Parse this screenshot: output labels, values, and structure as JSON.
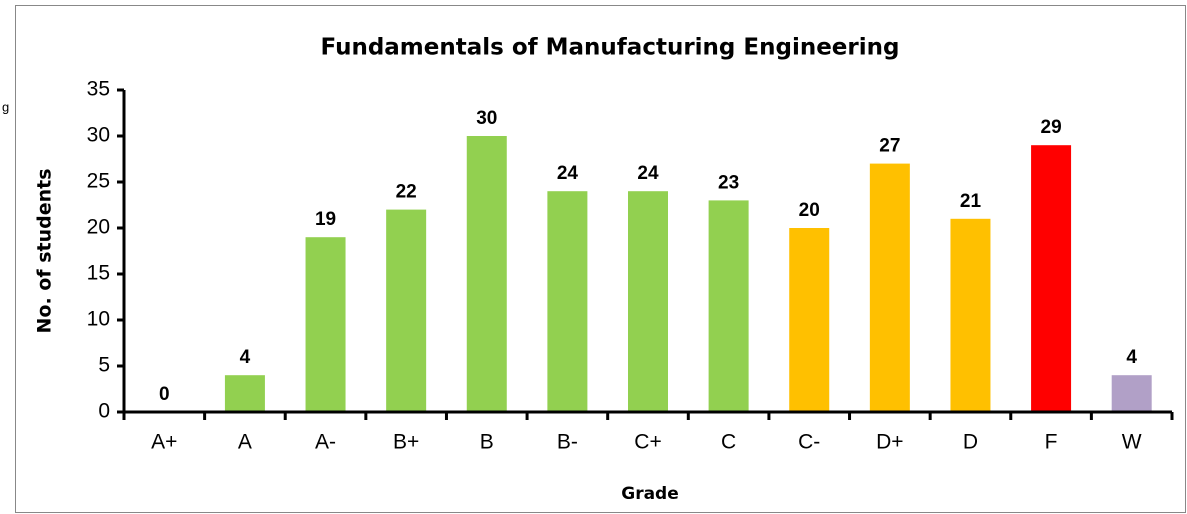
{
  "fragment": "g",
  "chart_data": {
    "type": "bar",
    "title": "Fundamentals of Manufacturing Engineering",
    "x_label": "Grade",
    "y_label": "No. of students",
    "categories": [
      "A+",
      "A",
      "A-",
      "B+",
      "B",
      "B-",
      "C+",
      "C",
      "C-",
      "D+",
      "D",
      "F",
      "W"
    ],
    "values": [
      0,
      4,
      19,
      22,
      30,
      24,
      24,
      23,
      20,
      27,
      21,
      29,
      4
    ],
    "colors": [
      "#92d050",
      "#92d050",
      "#92d050",
      "#92d050",
      "#92d050",
      "#92d050",
      "#92d050",
      "#92d050",
      "#ffc000",
      "#ffc000",
      "#ffc000",
      "#ff0000",
      "#b1a0c7"
    ],
    "ylim": [
      0,
      35
    ],
    "yticks": [
      0,
      5,
      10,
      15,
      20,
      25,
      30,
      35
    ],
    "grid": false
  }
}
